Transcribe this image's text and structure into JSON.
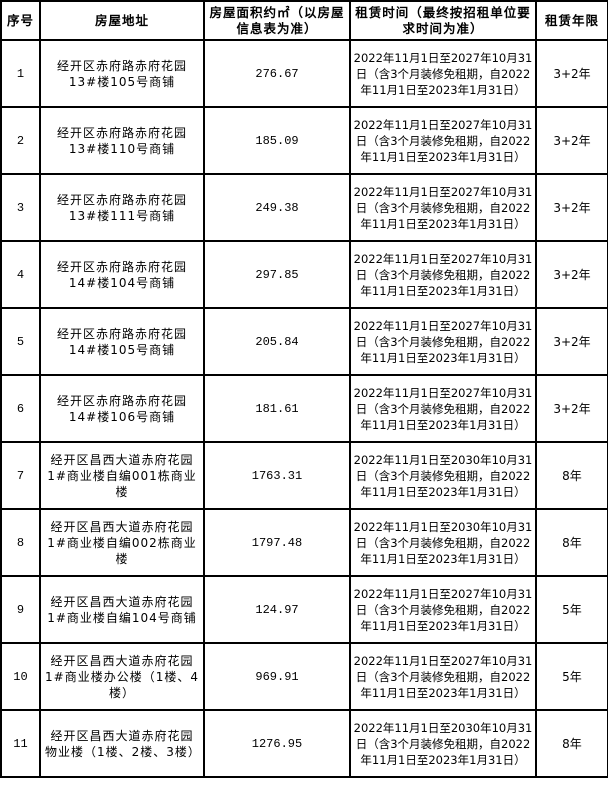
{
  "headers": {
    "index": "序号",
    "address": "房屋地址",
    "area": "房屋面积约㎡（以房屋信息表为准）",
    "lease_time": "租赁时间（最终按招租单位要求时间为准）",
    "lease_term": "租赁年限"
  },
  "rows": [
    {
      "index": "1",
      "address": "经开区赤府路赤府花园13#楼105号商铺",
      "area": "276.67",
      "lease_time": "2022年11月1日至2027年10月31日（含3个月装修免租期，自2022年11月1日至2023年1月31日）",
      "lease_term": "3+2年"
    },
    {
      "index": "2",
      "address": "经开区赤府路赤府花园13#楼110号商铺",
      "area": "185.09",
      "lease_time": "2022年11月1日至2027年10月31日（含3个月装修免租期，自2022年11月1日至2023年1月31日）",
      "lease_term": "3+2年"
    },
    {
      "index": "3",
      "address": "经开区赤府路赤府花园13#楼111号商铺",
      "area": "249.38",
      "lease_time": "2022年11月1日至2027年10月31日（含3个月装修免租期，自2022年11月1日至2023年1月31日）",
      "lease_term": "3+2年"
    },
    {
      "index": "4",
      "address": "经开区赤府路赤府花园14#楼104号商铺",
      "area": "297.85",
      "lease_time": "2022年11月1日至2027年10月31日（含3个月装修免租期，自2022年11月1日至2023年1月31日）",
      "lease_term": "3+2年"
    },
    {
      "index": "5",
      "address": "经开区赤府路赤府花园14#楼105号商铺",
      "area": "205.84",
      "lease_time": "2022年11月1日至2027年10月31日（含3个月装修免租期，自2022年11月1日至2023年1月31日）",
      "lease_term": "3+2年"
    },
    {
      "index": "6",
      "address": "经开区赤府路赤府花园14#楼106号商铺",
      "area": "181.61",
      "lease_time": "2022年11月1日至2027年10月31日（含3个月装修免租期，自2022年11月1日至2023年1月31日）",
      "lease_term": "3+2年"
    },
    {
      "index": "7",
      "address": "经开区昌西大道赤府花园1#商业楼自编001栋商业楼",
      "area": "1763.31",
      "lease_time": "2022年11月1日至2030年10月31日（含3个月装修免租期，自2022年11月1日至2023年1月31日）",
      "lease_term": "8年"
    },
    {
      "index": "8",
      "address": "经开区昌西大道赤府花园1#商业楼自编002栋商业楼",
      "area": "1797.48",
      "lease_time": "2022年11月1日至2030年10月31日（含3个月装修免租期，自2022年11月1日至2023年1月31日）",
      "lease_term": "8年"
    },
    {
      "index": "9",
      "address": "经开区昌西大道赤府花园1#商业楼自编104号商铺",
      "area": "124.97",
      "lease_time": "2022年11月1日至2027年10月31日（含3个月装修免租期，自2022年11月1日至2023年1月31日）",
      "lease_term": "5年"
    },
    {
      "index": "10",
      "address": "经开区昌西大道赤府花园1#商业楼办公楼（1楼、4楼）",
      "area": "969.91",
      "lease_time": "2022年11月1日至2027年10月31日（含3个月装修免租期，自2022年11月1日至2023年1月31日）",
      "lease_term": "5年"
    },
    {
      "index": "11",
      "address": "经开区昌西大道赤府花园物业楼（1楼、2楼、3楼）",
      "area": "1276.95",
      "lease_time": "2022年11月1日至2030年10月31日（含3个月装修免租期，自2022年11月1日至2023年1月31日）",
      "lease_term": "8年"
    }
  ]
}
